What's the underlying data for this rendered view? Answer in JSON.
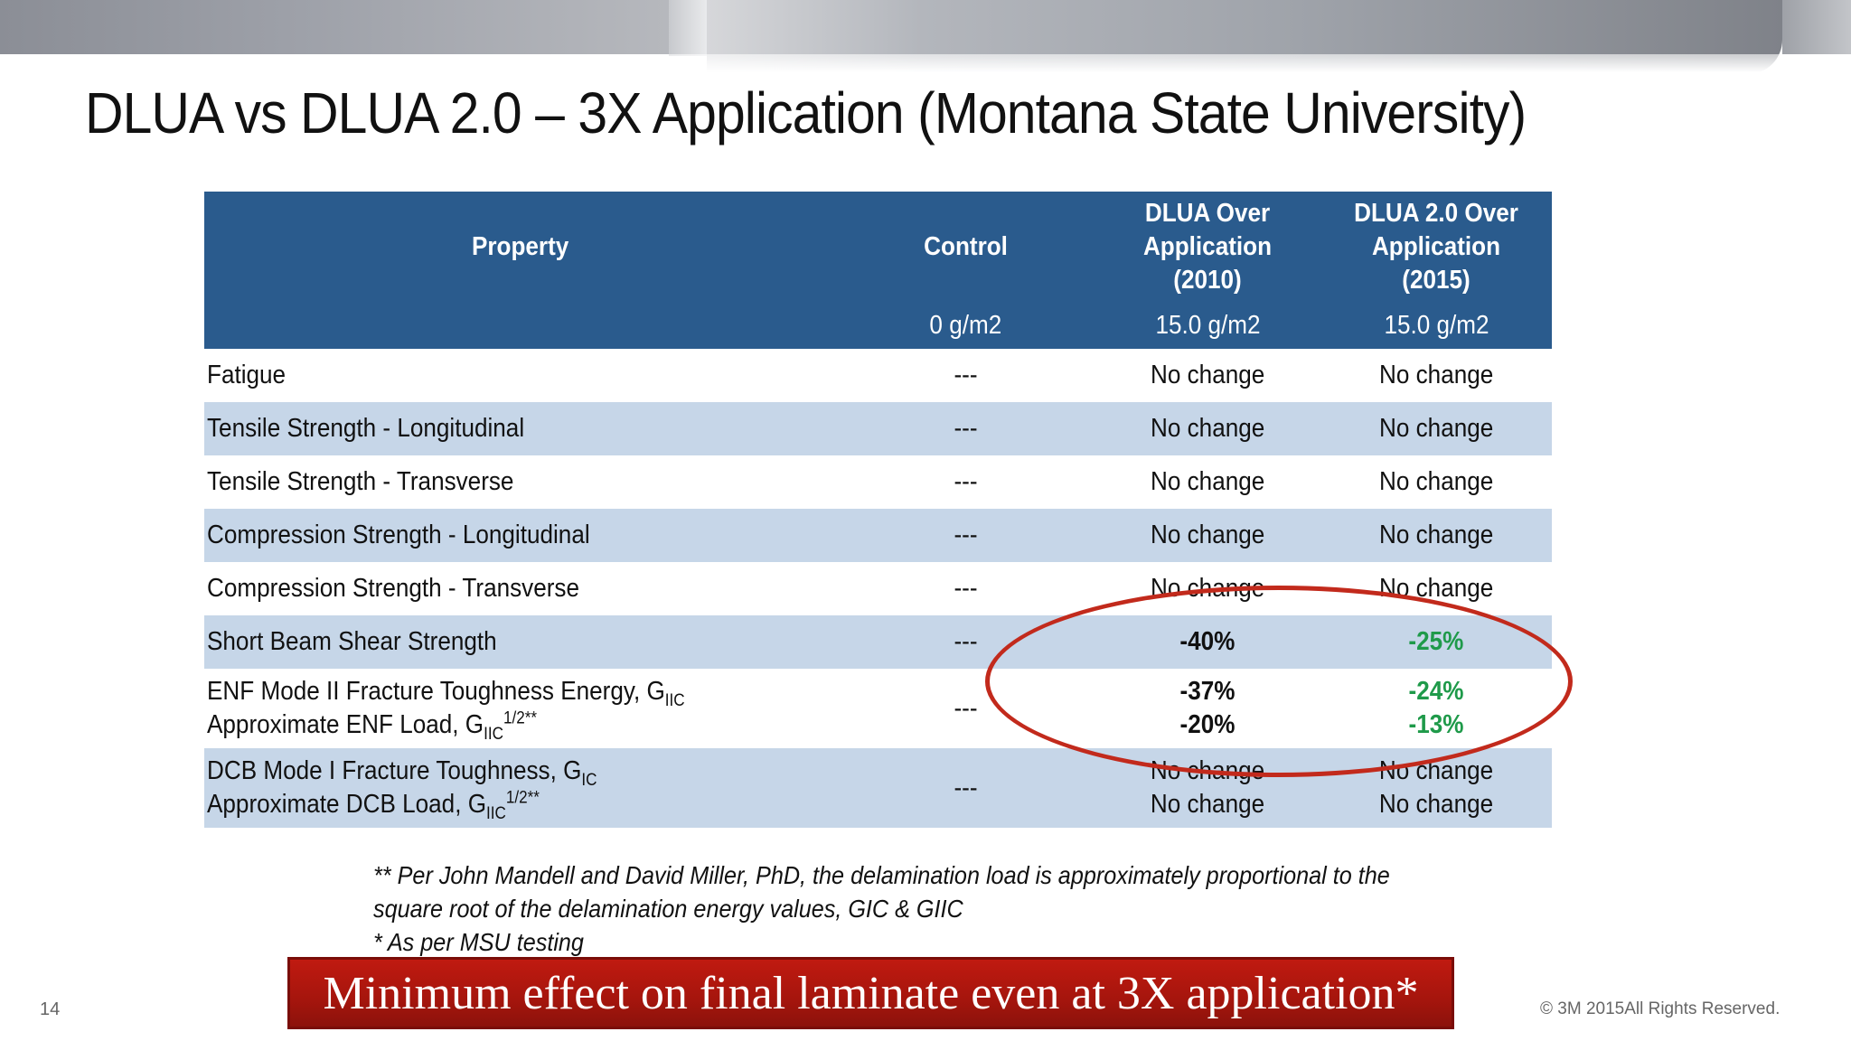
{
  "title": "DLUA vs DLUA 2.0 – 3X Application (Montana State University)",
  "table": {
    "headers": {
      "property": "Property",
      "control": "Control",
      "dlua_line1": "DLUA Over",
      "dlua_line2": "Application",
      "dlua_line3": "(2010)",
      "dlua2_line1": "DLUA 2.0 Over",
      "dlua2_line2": "Application",
      "dlua2_line3": "(2015)"
    },
    "subheaders": {
      "control": "0 g/m2",
      "dlua": "15.0 g/m2",
      "dlua2": "15.0 g/m2"
    },
    "rows": [
      {
        "property": "Fatigue",
        "control": "---",
        "dlua": "No change",
        "dlua2": "No change"
      },
      {
        "property": "Tensile Strength - Longitudinal",
        "control": "---",
        "dlua": "No change",
        "dlua2": "No change"
      },
      {
        "property": "Tensile Strength - Transverse",
        "control": "---",
        "dlua": "No change",
        "dlua2": "No change"
      },
      {
        "property": "Compression Strength - Longitudinal",
        "control": "---",
        "dlua": "No change",
        "dlua2": "No change"
      },
      {
        "property": "Compression Strength - Transverse",
        "control": "---",
        "dlua": "No change",
        "dlua2": "No change"
      },
      {
        "property": "Short Beam Shear Strength",
        "control": "---",
        "dlua": "-40%",
        "dlua2": "-25%"
      },
      {
        "property_line1": "ENF Mode II Fracture Toughness Energy, G",
        "property_line1_sub": "IIC",
        "property_line2": "Approximate ENF Load, G",
        "property_line2_sub": "IIC",
        "property_line2_sup": "1/2**",
        "control": "---",
        "dlua_line1": "-37%",
        "dlua_line2": "-20%",
        "dlua2_line1": "-24%",
        "dlua2_line2": "-13%"
      },
      {
        "property_line1": "DCB Mode I Fracture Toughness, G",
        "property_line1_sub": "IC",
        "property_line2": "Approximate DCB Load, G",
        "property_line2_sub": "IIC",
        "property_line2_sup": "1/2**",
        "control": "---",
        "dlua_line1": "No change",
        "dlua_line2": "No change",
        "dlua2_line1": "No change",
        "dlua2_line2": "No change"
      }
    ]
  },
  "footnote": {
    "line1": "** Per John Mandell and David Miller, PhD, the delamination load is approximately proportional to the",
    "line2": "square root of the delamination energy values, GIC & GIIC",
    "line3": "* As per MSU testing"
  },
  "banner": "Minimum effect on final laminate even at 3X application*",
  "page_number": "14",
  "copyright": "© 3M 2015All Rights Reserved.",
  "colors": {
    "header_blue": "#2a5b8d",
    "row_blue": "#c6d6e8",
    "green_value": "#1f9a4a",
    "oval_red": "#c22a1c",
    "banner_red": "#b0170e"
  }
}
